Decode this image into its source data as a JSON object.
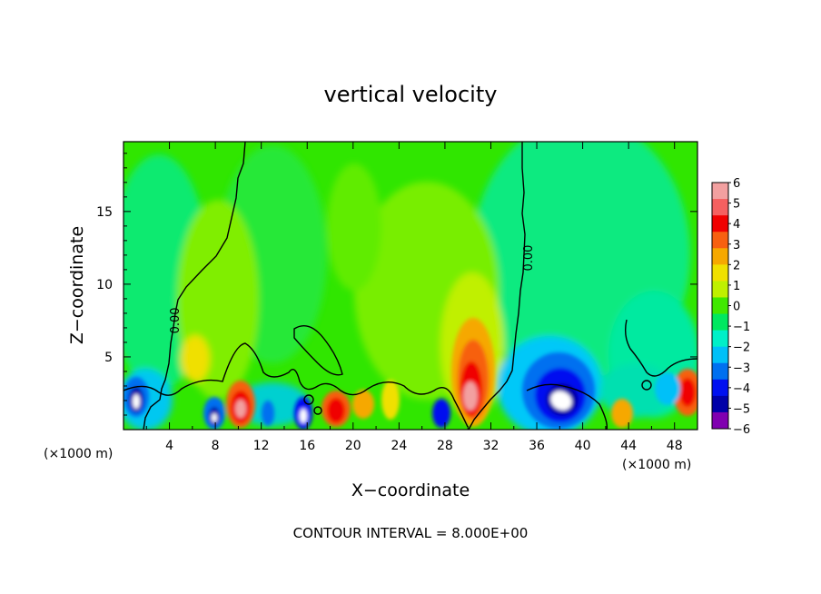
{
  "chart_data": {
    "type": "heatmap",
    "title": "vertical velocity",
    "xlabel": "X−coordinate",
    "ylabel": "Z−coordinate",
    "x_units": "(×1000 m)",
    "y_units": "(×1000 m)",
    "xlim": [
      0,
      50
    ],
    "ylim": [
      0,
      19.8
    ],
    "x_ticks": [
      4,
      8,
      12,
      16,
      20,
      24,
      28,
      32,
      36,
      40,
      44,
      48
    ],
    "y_ticks": [
      5,
      10,
      15
    ],
    "colorbar": {
      "ticks": [
        "6",
        "5",
        "4",
        "3",
        "2",
        "1",
        "0",
        "−1",
        "−2",
        "−3",
        "−4",
        "−5",
        "−6"
      ],
      "colors": [
        "#f2a0a0",
        "#f56060",
        "#f00000",
        "#f76010",
        "#f6a800",
        "#f0e000",
        "#bff000",
        "#40e800",
        "#00e860",
        "#00f0c8",
        "#00c0f8",
        "#0070f0",
        "#0010f0",
        "#0000a8",
        "#8000b0"
      ]
    },
    "contour_labels": [
      {
        "text": "0.00",
        "x": 4.5,
        "z": 7.5
      },
      {
        "text": "0.00",
        "x": 35.3,
        "z": 11.8
      }
    ],
    "features": [
      {
        "kind": "updraft",
        "x": 30.6,
        "z": 2.4,
        "value": 6
      },
      {
        "kind": "updraft",
        "x": 10.2,
        "z": 1.6,
        "value": 5
      },
      {
        "kind": "updraft",
        "x": 18.6,
        "z": 1.5,
        "value": 4
      },
      {
        "kind": "updraft",
        "x": 49.3,
        "z": 2.6,
        "value": 4
      },
      {
        "kind": "updraft",
        "x": 5.5,
        "z": 5.0,
        "value": 2
      },
      {
        "kind": "downdraft",
        "x": 38.5,
        "z": 2.0,
        "value": -6
      },
      {
        "kind": "downdraft",
        "x": 1.0,
        "z": 2.0,
        "value": -5
      },
      {
        "kind": "downdraft",
        "x": 8.0,
        "z": 1.2,
        "value": -5
      },
      {
        "kind": "downdraft",
        "x": 15.8,
        "z": 1.2,
        "value": -4
      },
      {
        "kind": "downdraft",
        "x": 27.8,
        "z": 1.4,
        "value": -4
      },
      {
        "kind": "downdraft",
        "x": 46.5,
        "z": 2.2,
        "value": -3
      }
    ],
    "footer": "CONTOUR INTERVAL = 8.000E+00"
  }
}
